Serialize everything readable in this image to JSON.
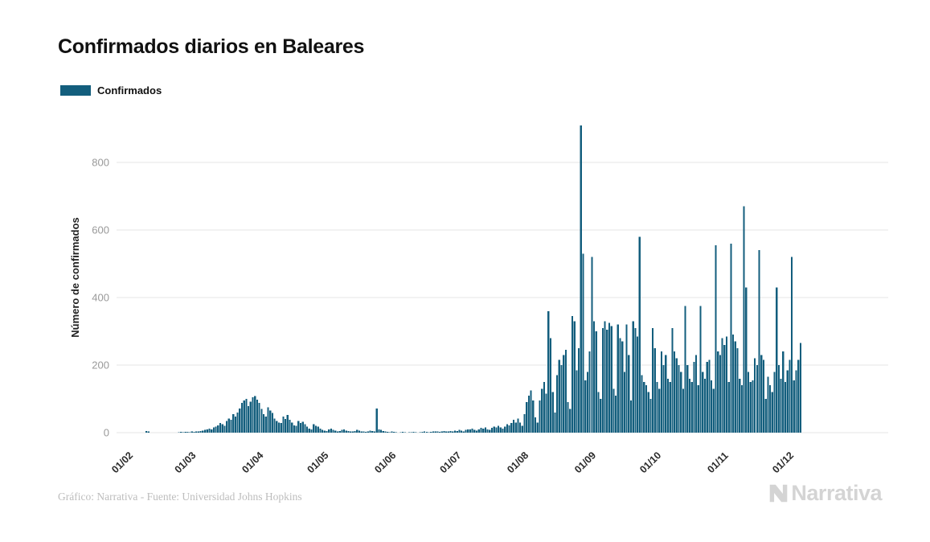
{
  "page": {
    "title": "Confirmados diarios en Baleares",
    "footer_credit": "Gráfico: Narrativa - Fuente: Universidad Johns Hopkins",
    "brand": "Narrativa"
  },
  "legend": {
    "items": [
      {
        "label": "Confirmados",
        "color": "#135e7d"
      }
    ]
  },
  "colors": {
    "bar": "#135e7d",
    "grid": "#e6e6e6",
    "y_tick_label": "#999999",
    "x_tick_label": "#2b2b2b",
    "title": "#111111",
    "footer": "#bdbdbd",
    "logo": "#d4d4d4",
    "background": "#ffffff"
  },
  "chart_data": {
    "type": "bar",
    "title": "Confirmados diarios en Baleares",
    "ylabel": "Número de confirmados",
    "xlabel": "",
    "legend_position": "top-left",
    "grid": "horizontal",
    "ylim": [
      0,
      950
    ],
    "y_ticks": [
      0,
      200,
      400,
      600,
      800
    ],
    "x_start_date": "01/02",
    "x_tick_labels": [
      "01/02",
      "01/03",
      "01/04",
      "01/05",
      "01/06",
      "01/07",
      "01/08",
      "01/09",
      "01/10",
      "01/11",
      "01/12"
    ],
    "x_tick_day_index": [
      0,
      29,
      60,
      90,
      121,
      151,
      182,
      213,
      243,
      274,
      304
    ],
    "series": [
      {
        "name": "Confirmados",
        "color": "#135e7d",
        "values": [
          0,
          0,
          0,
          0,
          0,
          0,
          0,
          0,
          0,
          0,
          5,
          3,
          0,
          0,
          0,
          0,
          0,
          0,
          0,
          0,
          0,
          0,
          0,
          0,
          0,
          1,
          2,
          1,
          2,
          2,
          1,
          3,
          2,
          4,
          3,
          5,
          6,
          8,
          10,
          12,
          9,
          15,
          18,
          22,
          28,
          25,
          20,
          35,
          42,
          38,
          55,
          48,
          60,
          72,
          88,
          95,
          100,
          78,
          92,
          105,
          108,
          98,
          88,
          70,
          55,
          48,
          75,
          65,
          58,
          42,
          35,
          30,
          28,
          48,
          40,
          52,
          38,
          30,
          22,
          20,
          35,
          28,
          32,
          25,
          18,
          12,
          10,
          25,
          20,
          18,
          12,
          8,
          6,
          5,
          10,
          12,
          8,
          6,
          4,
          5,
          8,
          10,
          6,
          5,
          4,
          3,
          5,
          8,
          6,
          4,
          3,
          2,
          4,
          6,
          5,
          3,
          72,
          10,
          8,
          5,
          4,
          2,
          1,
          3,
          2,
          1,
          0,
          1,
          2,
          1,
          0,
          1,
          1,
          2,
          1,
          0,
          1,
          2,
          3,
          2,
          1,
          2,
          3,
          4,
          3,
          2,
          4,
          5,
          4,
          3,
          5,
          4,
          6,
          5,
          8,
          6,
          4,
          8,
          10,
          9,
          12,
          8,
          6,
          10,
          14,
          12,
          15,
          10,
          8,
          14,
          18,
          15,
          20,
          16,
          12,
          18,
          25,
          22,
          28,
          38,
          30,
          42,
          30,
          20,
          55,
          90,
          110,
          125,
          95,
          45,
          30,
          95,
          130,
          150,
          115,
          360,
          280,
          120,
          60,
          170,
          215,
          200,
          230,
          245,
          90,
          70,
          345,
          330,
          185,
          250,
          910,
          530,
          155,
          180,
          240,
          520,
          330,
          300,
          120,
          100,
          310,
          330,
          305,
          325,
          315,
          130,
          110,
          320,
          280,
          270,
          180,
          320,
          230,
          95,
          330,
          310,
          285,
          580,
          170,
          150,
          140,
          120,
          100,
          310,
          250,
          150,
          130,
          240,
          200,
          230,
          160,
          150,
          310,
          240,
          220,
          200,
          180,
          130,
          375,
          200,
          160,
          150,
          210,
          230,
          140,
          375,
          180,
          160,
          210,
          215,
          155,
          130,
          555,
          240,
          230,
          280,
          260,
          285,
          150,
          560,
          290,
          270,
          250,
          160,
          140,
          670,
          430,
          180,
          150,
          155,
          220,
          200,
          540,
          230,
          215,
          100,
          165,
          140,
          120,
          180,
          430,
          200,
          160,
          240,
          150,
          185,
          215,
          520,
          155,
          185,
          215,
          265
        ]
      }
    ]
  }
}
